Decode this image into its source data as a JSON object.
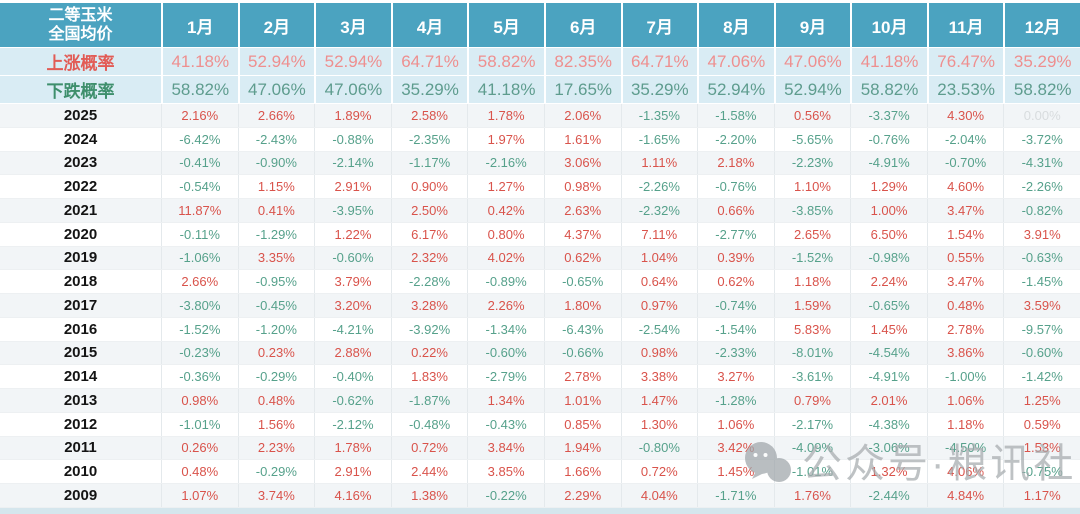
{
  "chart_data": {
    "type": "table",
    "corner_label": [
      "二等玉米",
      "全国均价"
    ],
    "columns": [
      "1月",
      "2月",
      "3月",
      "4月",
      "5月",
      "6月",
      "7月",
      "8月",
      "9月",
      "10月",
      "11月",
      "12月"
    ],
    "rise_probability": {
      "label": "上涨概率",
      "values": [
        "41.18%",
        "52.94%",
        "52.94%",
        "64.71%",
        "58.82%",
        "82.35%",
        "64.71%",
        "47.06%",
        "47.06%",
        "41.18%",
        "76.47%",
        "35.29%"
      ]
    },
    "fall_probability": {
      "label": "下跌概率",
      "values": [
        "58.82%",
        "47.06%",
        "47.06%",
        "35.29%",
        "41.18%",
        "17.65%",
        "35.29%",
        "52.94%",
        "52.94%",
        "58.82%",
        "23.53%",
        "58.82%"
      ]
    },
    "rows": [
      {
        "year": "2025",
        "values": [
          "2.16%",
          "2.66%",
          "1.89%",
          "2.58%",
          "1.78%",
          "2.06%",
          "-1.35%",
          "-1.58%",
          "0.56%",
          "-3.37%",
          "4.30%",
          "0.00%"
        ]
      },
      {
        "year": "2024",
        "values": [
          "-6.42%",
          "-2.43%",
          "-0.88%",
          "-2.35%",
          "1.97%",
          "1.61%",
          "-1.65%",
          "-2.20%",
          "-5.65%",
          "-0.76%",
          "-2.04%",
          "-3.72%"
        ]
      },
      {
        "year": "2023",
        "values": [
          "-0.41%",
          "-0.90%",
          "-2.14%",
          "-1.17%",
          "-2.16%",
          "3.06%",
          "1.11%",
          "2.18%",
          "-2.23%",
          "-4.91%",
          "-0.70%",
          "-4.31%"
        ]
      },
      {
        "year": "2022",
        "values": [
          "-0.54%",
          "1.15%",
          "2.91%",
          "0.90%",
          "1.27%",
          "0.98%",
          "-2.26%",
          "-0.76%",
          "1.10%",
          "1.29%",
          "4.60%",
          "-2.26%"
        ]
      },
      {
        "year": "2021",
        "values": [
          "11.87%",
          "0.41%",
          "-3.95%",
          "2.50%",
          "0.42%",
          "2.63%",
          "-2.32%",
          "0.66%",
          "-3.85%",
          "1.00%",
          "3.47%",
          "-0.82%"
        ]
      },
      {
        "year": "2020",
        "values": [
          "-0.11%",
          "-1.29%",
          "1.22%",
          "6.17%",
          "0.80%",
          "4.37%",
          "7.11%",
          "-2.77%",
          "2.65%",
          "6.50%",
          "1.54%",
          "3.91%"
        ]
      },
      {
        "year": "2019",
        "values": [
          "-1.06%",
          "3.35%",
          "-0.60%",
          "2.32%",
          "4.02%",
          "0.62%",
          "1.04%",
          "0.39%",
          "-1.52%",
          "-0.98%",
          "0.55%",
          "-0.63%"
        ]
      },
      {
        "year": "2018",
        "values": [
          "2.66%",
          "-0.95%",
          "3.79%",
          "-2.28%",
          "-0.89%",
          "-0.65%",
          "0.64%",
          "0.62%",
          "1.18%",
          "2.24%",
          "3.47%",
          "-1.45%"
        ]
      },
      {
        "year": "2017",
        "values": [
          "-3.80%",
          "-0.45%",
          "3.20%",
          "3.28%",
          "2.26%",
          "1.80%",
          "0.97%",
          "-0.74%",
          "1.59%",
          "-0.65%",
          "0.48%",
          "3.59%"
        ]
      },
      {
        "year": "2016",
        "values": [
          "-1.52%",
          "-1.20%",
          "-4.21%",
          "-3.92%",
          "-1.34%",
          "-6.43%",
          "-2.54%",
          "-1.54%",
          "5.83%",
          "1.45%",
          "2.78%",
          "-9.57%"
        ]
      },
      {
        "year": "2015",
        "values": [
          "-0.23%",
          "0.23%",
          "2.88%",
          "0.22%",
          "-0.60%",
          "-0.66%",
          "0.98%",
          "-2.33%",
          "-8.01%",
          "-4.54%",
          "3.86%",
          "-0.60%"
        ]
      },
      {
        "year": "2014",
        "values": [
          "-0.36%",
          "-0.29%",
          "-0.40%",
          "1.83%",
          "-2.79%",
          "2.78%",
          "3.38%",
          "3.27%",
          "-3.61%",
          "-4.91%",
          "-1.00%",
          "-1.42%"
        ]
      },
      {
        "year": "2013",
        "values": [
          "0.98%",
          "0.48%",
          "-0.62%",
          "-1.87%",
          "1.34%",
          "1.01%",
          "1.47%",
          "-1.28%",
          "0.79%",
          "2.01%",
          "1.06%",
          "1.25%"
        ]
      },
      {
        "year": "2012",
        "values": [
          "-1.01%",
          "1.56%",
          "-2.12%",
          "-0.48%",
          "-0.43%",
          "0.85%",
          "1.30%",
          "1.06%",
          "-2.17%",
          "-4.38%",
          "1.18%",
          "0.59%"
        ]
      },
      {
        "year": "2011",
        "values": [
          "0.26%",
          "2.23%",
          "1.78%",
          "0.72%",
          "3.84%",
          "1.94%",
          "-0.80%",
          "3.42%",
          "-4.09%",
          "-3.06%",
          "-4.50%",
          "1.53%"
        ]
      },
      {
        "year": "2010",
        "values": [
          "0.48%",
          "-0.29%",
          "2.91%",
          "2.44%",
          "3.85%",
          "1.66%",
          "0.72%",
          "1.45%",
          "-1.01%",
          "1.32%",
          "4.06%",
          "-0.75%"
        ]
      },
      {
        "year": "2009",
        "values": [
          "1.07%",
          "3.74%",
          "4.16%",
          "1.38%",
          "-0.22%",
          "2.29%",
          "4.04%",
          "-1.71%",
          "1.76%",
          "-2.44%",
          "4.84%",
          "1.17%"
        ]
      }
    ]
  },
  "watermark": {
    "text": "公众号·粮讯社",
    "icon": "wechat-icon"
  },
  "colors": {
    "header_bg": "#4BA3C0",
    "probability_bg": "#D9ECF4",
    "rise_label": "#E25B55",
    "fall_label": "#3E8F6C",
    "positive_value": "#D9534B",
    "negative_value": "#56A18B",
    "zero_value": "#D8DCDE"
  }
}
